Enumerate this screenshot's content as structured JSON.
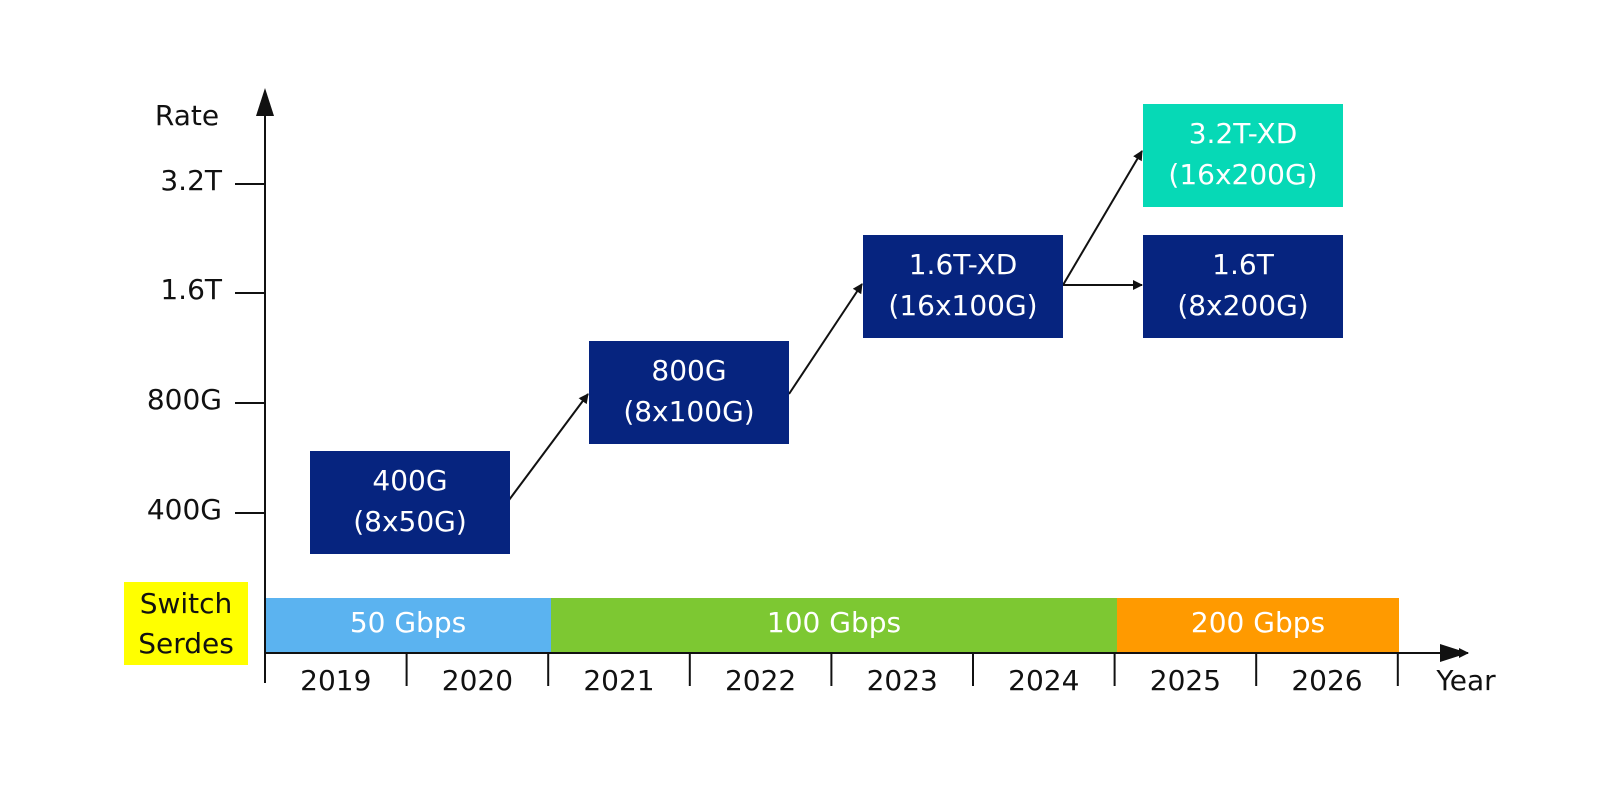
{
  "axis": {
    "y_label": "Rate",
    "x_label": "Year",
    "rate_ticks": [
      "3.2T",
      "1.6T",
      "800G",
      "400G"
    ],
    "years": [
      "2019",
      "2020",
      "2021",
      "2022",
      "2023",
      "2024",
      "2025",
      "2026"
    ]
  },
  "serdes": {
    "label": [
      "Switch",
      "Serdes"
    ],
    "bands": [
      "50 Gbps",
      "100 Gbps",
      "200 Gbps"
    ]
  },
  "boxes": [
    {
      "lines": [
        "400G",
        "(8x50G)"
      ]
    },
    {
      "lines": [
        "800G",
        "(8x100G)"
      ]
    },
    {
      "lines": [
        "1.6T-XD",
        "(16x100G)"
      ]
    },
    {
      "lines": [
        "1.6T",
        "(8x200G)"
      ]
    },
    {
      "lines": [
        "3.2T-XD",
        "(16x200G)"
      ]
    }
  ]
}
